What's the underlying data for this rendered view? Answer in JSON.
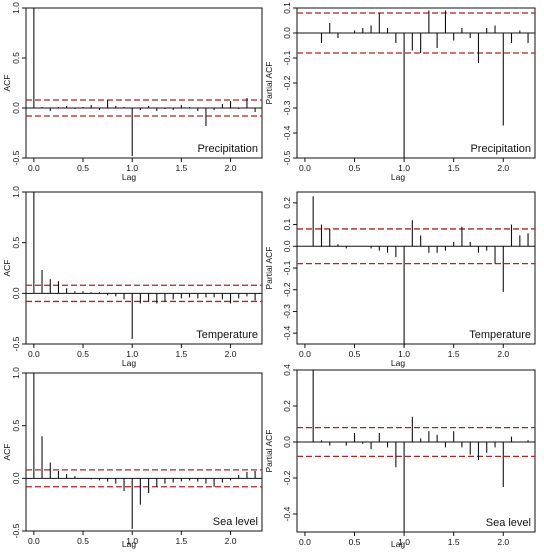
{
  "chart_data": [
    {
      "type": "bar",
      "kind": "acf",
      "title": "Precipitation",
      "xlabel": "Lag",
      "ylabel": "ACF",
      "xlim": [
        -0.08,
        2.32
      ],
      "ylim": [
        -0.5,
        1.0
      ],
      "xticks": [
        0.0,
        0.5,
        1.0,
        1.5,
        2.0
      ],
      "xtick_labels": [
        "0.0",
        "0.5",
        "1.0",
        "1.5",
        "2.0"
      ],
      "yticks": [
        -0.5,
        0.0,
        0.5,
        1.0
      ],
      "ytick_labels": [
        "-0.5",
        "0.0",
        "0.5",
        "1.0"
      ],
      "confidence_bounds": [
        0.08,
        -0.08
      ],
      "x": [
        0.0,
        0.083,
        0.167,
        0.25,
        0.333,
        0.417,
        0.5,
        0.583,
        0.667,
        0.75,
        0.833,
        0.917,
        1.0,
        1.083,
        1.167,
        1.25,
        1.333,
        1.417,
        1.5,
        1.583,
        1.667,
        1.75,
        1.833,
        1.917,
        2.0,
        2.083,
        2.167,
        2.25
      ],
      "values": [
        1.0,
        0.01,
        -0.03,
        0.01,
        0.02,
        -0.01,
        0.01,
        0.03,
        -0.02,
        0.08,
        0.02,
        0.01,
        -0.48,
        -0.02,
        0.02,
        -0.03,
        -0.01,
        -0.02,
        0.03,
        0.01,
        -0.03,
        -0.18,
        -0.02,
        0.04,
        0.07,
        -0.01,
        0.1,
        -0.04
      ]
    },
    {
      "type": "bar",
      "kind": "pacf",
      "title": "Precipitation",
      "xlabel": "Lag",
      "ylabel": "Partial ACF",
      "xlim": [
        -0.08,
        2.32
      ],
      "ylim": [
        -0.5,
        0.1
      ],
      "xticks": [
        0.0,
        0.5,
        1.0,
        1.5,
        2.0
      ],
      "xtick_labels": [
        "0.0",
        "0.5",
        "1.0",
        "1.5",
        "2.0"
      ],
      "yticks": [
        -0.5,
        -0.4,
        -0.3,
        -0.2,
        -0.1,
        0.0,
        0.1
      ],
      "ytick_labels": [
        "-0.5",
        "-0.4",
        "-0.3",
        "-0.2",
        "-0.1",
        "0.0",
        "0.1"
      ],
      "confidence_bounds": [
        0.08,
        -0.08
      ],
      "x": [
        0.083,
        0.167,
        0.25,
        0.333,
        0.417,
        0.5,
        0.583,
        0.667,
        0.75,
        0.833,
        0.917,
        1.0,
        1.083,
        1.167,
        1.25,
        1.333,
        1.417,
        1.5,
        1.583,
        1.667,
        1.75,
        1.833,
        1.917,
        2.0,
        2.083,
        2.167,
        2.25
      ],
      "values": [
        0.0,
        -0.04,
        0.04,
        -0.02,
        0.0,
        0.01,
        0.02,
        0.03,
        0.08,
        0.02,
        -0.04,
        -0.5,
        -0.07,
        -0.08,
        0.09,
        -0.06,
        0.09,
        -0.03,
        0.02,
        -0.02,
        -0.12,
        0.02,
        0.03,
        -0.37,
        -0.04,
        0.01,
        -0.04
      ]
    },
    {
      "type": "bar",
      "kind": "acf",
      "title": "Temperature",
      "xlabel": "Lag",
      "ylabel": "ACF",
      "xlim": [
        -0.08,
        2.32
      ],
      "ylim": [
        -0.5,
        1.0
      ],
      "xticks": [
        0.0,
        0.5,
        1.0,
        1.5,
        2.0
      ],
      "xtick_labels": [
        "0.0",
        "0.5",
        "1.0",
        "1.5",
        "2.0"
      ],
      "yticks": [
        -0.5,
        0.0,
        0.5,
        1.0
      ],
      "ytick_labels": [
        "-0.5",
        "0.0",
        "0.5",
        "1.0"
      ],
      "confidence_bounds": [
        0.08,
        -0.08
      ],
      "x": [
        0.0,
        0.083,
        0.167,
        0.25,
        0.333,
        0.417,
        0.5,
        0.583,
        0.667,
        0.75,
        0.833,
        0.917,
        1.0,
        1.083,
        1.167,
        1.25,
        1.333,
        1.417,
        1.5,
        1.583,
        1.667,
        1.75,
        1.833,
        1.917,
        2.0,
        2.083,
        2.167,
        2.25
      ],
      "values": [
        1.0,
        0.23,
        0.14,
        0.12,
        0.05,
        0.02,
        0.02,
        0.01,
        0.01,
        -0.02,
        -0.03,
        -0.06,
        -0.45,
        -0.1,
        -0.08,
        -0.1,
        -0.08,
        -0.06,
        -0.05,
        -0.04,
        -0.05,
        -0.04,
        -0.04,
        -0.06,
        -0.1,
        -0.05,
        -0.03,
        -0.07
      ]
    },
    {
      "type": "bar",
      "kind": "pacf",
      "title": "Temperature",
      "xlabel": "Lag",
      "ylabel": "Partial ACF",
      "xlim": [
        -0.08,
        2.32
      ],
      "ylim": [
        -0.45,
        0.25
      ],
      "xticks": [
        0.0,
        0.5,
        1.0,
        1.5,
        2.0
      ],
      "xtick_labels": [
        "0.0",
        "0.5",
        "1.0",
        "1.5",
        "2.0"
      ],
      "yticks": [
        -0.4,
        -0.3,
        -0.2,
        -0.1,
        0.0,
        0.1,
        0.2
      ],
      "ytick_labels": [
        "-0.4",
        "-0.3",
        "-0.2",
        "-0.1",
        "0.0",
        "0.1",
        "0.2"
      ],
      "confidence_bounds": [
        0.08,
        -0.08
      ],
      "x": [
        0.083,
        0.167,
        0.25,
        0.333,
        0.417,
        0.5,
        0.583,
        0.667,
        0.75,
        0.833,
        0.917,
        1.0,
        1.083,
        1.167,
        1.25,
        1.333,
        1.417,
        1.5,
        1.583,
        1.667,
        1.75,
        1.833,
        1.917,
        2.0,
        2.083,
        2.167,
        2.25
      ],
      "values": [
        0.23,
        0.1,
        0.08,
        0.01,
        -0.01,
        0.0,
        0.0,
        -0.01,
        -0.02,
        -0.03,
        -0.05,
        -0.46,
        0.12,
        0.05,
        -0.03,
        -0.03,
        -0.02,
        0.02,
        0.09,
        0.02,
        -0.03,
        -0.02,
        -0.08,
        -0.21,
        0.1,
        0.05,
        0.06
      ]
    },
    {
      "type": "bar",
      "kind": "acf",
      "title": "Sea level",
      "xlabel": "Lag",
      "ylabel": "ACF",
      "xlim": [
        -0.08,
        2.32
      ],
      "ylim": [
        -0.5,
        1.0
      ],
      "xticks": [
        0.0,
        0.5,
        1.0,
        1.5,
        2.0
      ],
      "xtick_labels": [
        "0.0",
        "0.5",
        "1.0",
        "1.5",
        "2.0"
      ],
      "yticks": [
        -0.5,
        0.0,
        0.5,
        1.0
      ],
      "ytick_labels": [
        "-0.5",
        "0.0",
        "0.5",
        "1.0"
      ],
      "confidence_bounds": [
        0.08,
        -0.08
      ],
      "x": [
        0.0,
        0.083,
        0.167,
        0.25,
        0.333,
        0.417,
        0.5,
        0.583,
        0.667,
        0.75,
        0.833,
        0.917,
        1.0,
        1.083,
        1.167,
        1.25,
        1.333,
        1.417,
        1.5,
        1.583,
        1.667,
        1.75,
        1.833,
        1.917,
        2.0,
        2.083,
        2.167,
        2.25
      ],
      "values": [
        1.0,
        0.4,
        0.15,
        0.07,
        0.04,
        0.02,
        0.0,
        -0.01,
        -0.02,
        -0.03,
        -0.05,
        -0.12,
        -0.48,
        -0.25,
        -0.14,
        -0.08,
        -0.05,
        -0.04,
        -0.03,
        -0.02,
        -0.03,
        -0.05,
        -0.08,
        -0.04,
        -0.02,
        0.03,
        0.06,
        0.07
      ]
    },
    {
      "type": "bar",
      "kind": "pacf",
      "title": "Sea level",
      "xlabel": "Lag",
      "ylabel": "Partial ACF",
      "xlim": [
        -0.08,
        2.32
      ],
      "ylim": [
        -0.5,
        0.4
      ],
      "xticks": [
        0.0,
        0.5,
        1.0,
        1.5,
        2.0
      ],
      "xtick_labels": [
        "0.0",
        "0.5",
        "1.0",
        "1.5",
        "2.0"
      ],
      "yticks": [
        -0.4,
        -0.2,
        0.0,
        0.2,
        0.4
      ],
      "ytick_labels": [
        "-0.4",
        "-0.2",
        "0.0",
        "0.2",
        "0.4"
      ],
      "confidence_bounds": [
        0.08,
        -0.08
      ],
      "x": [
        0.083,
        0.167,
        0.25,
        0.333,
        0.417,
        0.5,
        0.583,
        0.667,
        0.75,
        0.833,
        0.917,
        1.0,
        1.083,
        1.167,
        1.25,
        1.333,
        1.417,
        1.5,
        1.583,
        1.667,
        1.75,
        1.833,
        1.917,
        2.0,
        2.083,
        2.167,
        2.25
      ],
      "values": [
        0.4,
        0.01,
        -0.02,
        0.0,
        -0.02,
        0.05,
        -0.01,
        -0.04,
        0.05,
        -0.03,
        -0.14,
        -0.5,
        0.14,
        0.02,
        0.06,
        0.04,
        -0.03,
        0.06,
        -0.03,
        -0.07,
        -0.1,
        -0.06,
        -0.03,
        -0.25,
        0.03,
        0.0,
        0.01
      ]
    }
  ],
  "colors": {
    "bars": "#111111",
    "zero_line": "#111111",
    "confidence_band": "#b22222",
    "frame": "#111111"
  }
}
